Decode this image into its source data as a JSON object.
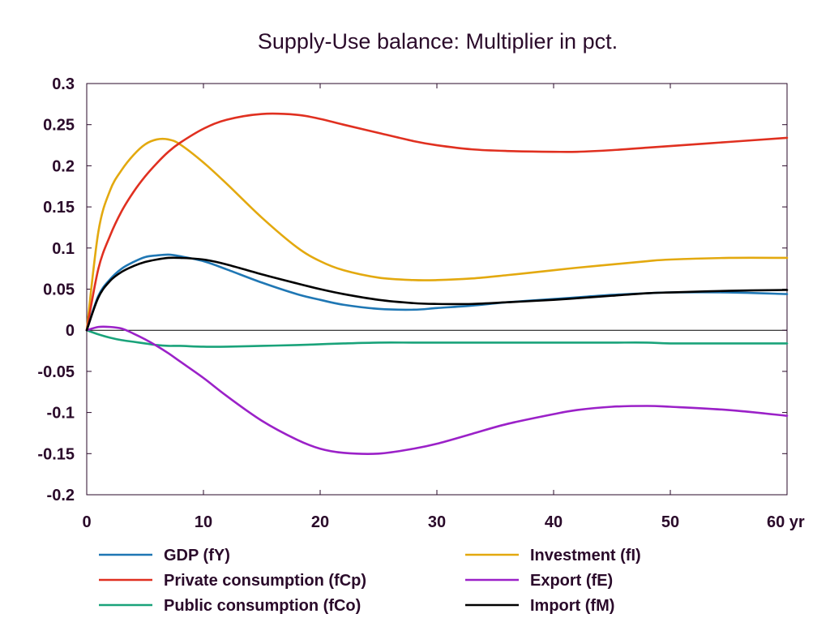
{
  "chart_data": {
    "type": "line",
    "title": "Supply-Use balance: Multiplier in pct.",
    "xlabel": "",
    "ylabel": "",
    "x_unit_label": "yr",
    "xlim": [
      0,
      60
    ],
    "ylim": [
      -0.2,
      0.3
    ],
    "x_ticks": [
      0,
      10,
      20,
      30,
      40,
      50,
      60
    ],
    "x_tick_labels": [
      "0",
      "10",
      "20",
      "30",
      "40",
      "50",
      "60 yr"
    ],
    "y_ticks": [
      0.3,
      0.25,
      0.2,
      0.15,
      0.1,
      0.05,
      0,
      -0.05,
      -0.1,
      -0.15,
      -0.2
    ],
    "y_tick_labels": [
      "0.3",
      "0.25",
      "0.2",
      "0.15",
      "0.1",
      "0.05",
      "0",
      "-0.05",
      "-0.1",
      "-0.15",
      "-0.2"
    ],
    "grid": false,
    "legend_position": "bottom",
    "zero_line": true,
    "x": [
      0,
      1,
      2,
      3,
      4,
      5,
      6,
      7,
      8,
      10,
      12,
      15,
      18,
      20,
      22,
      25,
      28,
      30,
      33,
      36,
      40,
      42,
      45,
      48,
      50,
      55,
      60
    ],
    "series": [
      {
        "name": "GDP (fY)",
        "color": "#1f77b4",
        "values": [
          0,
          0.042,
          0.062,
          0.075,
          0.083,
          0.089,
          0.091,
          0.092,
          0.09,
          0.084,
          0.074,
          0.058,
          0.044,
          0.037,
          0.031,
          0.026,
          0.025,
          0.027,
          0.03,
          0.034,
          0.038,
          0.04,
          0.043,
          0.045,
          0.046,
          0.046,
          0.044
        ]
      },
      {
        "name": "Private consumption (fCp)",
        "color": "#e03020",
        "values": [
          0,
          0.075,
          0.115,
          0.145,
          0.168,
          0.187,
          0.203,
          0.217,
          0.228,
          0.245,
          0.256,
          0.263,
          0.262,
          0.257,
          0.25,
          0.24,
          0.23,
          0.225,
          0.22,
          0.218,
          0.217,
          0.217,
          0.219,
          0.222,
          0.224,
          0.229,
          0.234
        ]
      },
      {
        "name": "Public consumption (fCo)",
        "color": "#1aa37a",
        "values": [
          0,
          -0.005,
          -0.009,
          -0.012,
          -0.014,
          -0.016,
          -0.018,
          -0.019,
          -0.019,
          -0.02,
          -0.02,
          -0.019,
          -0.018,
          -0.017,
          -0.016,
          -0.015,
          -0.015,
          -0.015,
          -0.015,
          -0.015,
          -0.015,
          -0.015,
          -0.015,
          -0.015,
          -0.016,
          -0.016,
          -0.016
        ]
      },
      {
        "name": "Investment (fI)",
        "color": "#e3a90f",
        "values": [
          0,
          0.12,
          0.17,
          0.195,
          0.213,
          0.226,
          0.232,
          0.232,
          0.226,
          0.204,
          0.178,
          0.137,
          0.101,
          0.084,
          0.073,
          0.064,
          0.061,
          0.061,
          0.063,
          0.067,
          0.073,
          0.076,
          0.08,
          0.084,
          0.086,
          0.088,
          0.088
        ]
      },
      {
        "name": "Export (fE)",
        "color": "#9b21c8",
        "values": [
          0,
          0.004,
          0.004,
          0.002,
          -0.004,
          -0.011,
          -0.019,
          -0.028,
          -0.038,
          -0.058,
          -0.08,
          -0.11,
          -0.133,
          -0.144,
          -0.149,
          -0.15,
          -0.144,
          -0.138,
          -0.126,
          -0.114,
          -0.102,
          -0.097,
          -0.093,
          -0.092,
          -0.093,
          -0.097,
          -0.104
        ]
      },
      {
        "name": "Import (fM)",
        "color": "#000000",
        "values": [
          0,
          0.04,
          0.06,
          0.071,
          0.078,
          0.083,
          0.086,
          0.088,
          0.088,
          0.086,
          0.08,
          0.068,
          0.057,
          0.05,
          0.044,
          0.037,
          0.033,
          0.032,
          0.032,
          0.034,
          0.037,
          0.039,
          0.042,
          0.045,
          0.046,
          0.048,
          0.049
        ]
      }
    ]
  }
}
